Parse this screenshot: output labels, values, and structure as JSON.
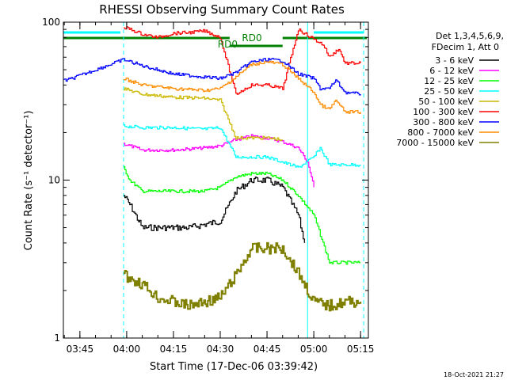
{
  "chart_data": {
    "type": "line",
    "title": "RHESSI Observing Summary Count Rates",
    "xlabel": "Start Time (17-Dec-06 03:39:42)",
    "ylabel": "Count Rate (s⁻¹ detector⁻¹)",
    "y_scale": "log",
    "ylim": [
      1,
      100
    ],
    "xlim": [
      "03:39:42",
      "05:17:30"
    ],
    "x_ticks": [
      "03:45",
      "04:00",
      "04:15",
      "04:30",
      "04:45",
      "05:00",
      "05:15"
    ],
    "y_ticks": [
      "1",
      "10",
      "100"
    ],
    "legend_header": [
      "Det 1,3,4,5,6,9,",
      "FDecim 1, Att 0"
    ],
    "legend_position": "right",
    "annotations": [
      "RD0",
      "RD0"
    ],
    "timestamp": "18-Oct-2021 21:27",
    "series": [
      {
        "name": "3 - 6 keV",
        "color": "#000000",
        "x": [
          "03:59",
          "04:01",
          "04:05",
          "04:10",
          "04:20",
          "04:30",
          "04:35",
          "04:40",
          "04:45",
          "04:50",
          "04:55",
          "04:57"
        ],
        "values": [
          8,
          7,
          5,
          5,
          5,
          5.5,
          8.5,
          10,
          10,
          9,
          6,
          4
        ]
      },
      {
        "name": "6 - 12 keV",
        "color": "#ff00ff",
        "x": [
          "03:59",
          "04:05",
          "04:15",
          "04:25",
          "04:30",
          "04:35",
          "04:40",
          "04:45",
          "04:50",
          "04:55",
          "04:58",
          "05:00"
        ],
        "values": [
          17,
          15.5,
          15.5,
          16,
          16.5,
          18,
          19,
          18.5,
          17.5,
          16,
          13,
          9
        ]
      },
      {
        "name": "12 - 25 keV",
        "color": "#00ff00",
        "x": [
          "03:59",
          "04:01",
          "04:05",
          "04:15",
          "04:25",
          "04:30",
          "04:35",
          "04:40",
          "04:45",
          "04:50",
          "04:55",
          "05:00",
          "05:05",
          "05:10",
          "05:15"
        ],
        "values": [
          12,
          10,
          8.5,
          8.5,
          8.5,
          9,
          10.5,
          11,
          11,
          10,
          8,
          6,
          3,
          3,
          3
        ]
      },
      {
        "name": "25 - 50 keV",
        "color": "#00ffff",
        "x": [
          "03:59",
          "04:05",
          "04:15",
          "04:25",
          "04:30",
          "04:35",
          "04:40",
          "04:45",
          "04:50",
          "04:55",
          "05:00",
          "05:02",
          "05:05",
          "05:10",
          "05:15"
        ],
        "values": [
          22,
          21.5,
          21.5,
          21,
          21.5,
          14,
          14,
          14,
          13,
          12,
          14,
          16,
          12.5,
          12.5,
          12.5
        ]
      },
      {
        "name": "50 - 100 keV",
        "color": "#ccb800",
        "x": [
          "03:59",
          "04:05",
          "04:15",
          "04:25",
          "04:30",
          "04:35",
          "04:40",
          "04:45",
          "04:50"
        ],
        "values": [
          38,
          35,
          33.5,
          33,
          32,
          18.5,
          18.5,
          18.5,
          18
        ]
      },
      {
        "name": "100 - 300 keV",
        "color": "#ff0000",
        "x": [
          "03:59",
          "04:00",
          "04:05",
          "04:10",
          "04:15",
          "04:20",
          "04:25",
          "04:30",
          "04:35",
          "04:40",
          "04:45",
          "04:50",
          "04:55",
          "05:00",
          "05:03",
          "05:05",
          "05:08",
          "05:10",
          "05:15"
        ],
        "values": [
          90,
          92,
          84,
          80,
          85,
          86,
          88,
          80,
          35,
          40,
          40,
          38,
          90,
          78,
          72,
          60,
          68,
          55,
          55
        ]
      },
      {
        "name": "300 - 800 keV",
        "color": "#0000ff",
        "x": [
          "03:39:42",
          "03:41",
          "03:59",
          "04:05",
          "04:15",
          "04:25",
          "04:30",
          "04:35",
          "04:40",
          "04:45",
          "04:50",
          "04:55",
          "05:00",
          "05:02",
          "05:05",
          "05:07",
          "05:10",
          "05:15"
        ],
        "values": [
          43,
          43,
          58,
          53,
          47,
          45,
          44,
          48,
          56,
          58,
          57,
          47,
          44,
          38,
          38,
          43,
          36,
          35
        ]
      },
      {
        "name": "800 - 7000 keV",
        "color": "#ff8c00",
        "x": [
          "03:59",
          "04:05",
          "04:15",
          "04:25",
          "04:30",
          "04:35",
          "04:40",
          "04:45",
          "04:50",
          "04:55",
          "05:00",
          "05:02",
          "05:05",
          "05:07",
          "05:10",
          "05:15"
        ],
        "values": [
          44,
          40,
          38,
          37,
          38,
          45,
          54,
          56,
          54,
          44,
          36,
          30,
          28,
          32,
          27,
          27
        ]
      },
      {
        "name": "7000 - 15000 keV",
        "color": "#808000",
        "x": [
          "03:59",
          "04:05",
          "04:10",
          "04:20",
          "04:30",
          "04:35",
          "04:40",
          "04:45",
          "04:50",
          "04:55",
          "05:00",
          "05:05",
          "05:10",
          "05:15"
        ],
        "values": [
          2.5,
          2.2,
          1.8,
          1.6,
          1.8,
          2.5,
          3.7,
          3.7,
          3.7,
          2.6,
          1.7,
          1.6,
          1.7,
          1.7
        ]
      }
    ],
    "markers": {
      "cyan_dashed_at": [
        "03:59",
        "05:16"
      ],
      "cyan_solid_at": [
        "04:58"
      ],
      "cyan_top_bars": [
        [
          "03:39:42",
          "03:58"
        ],
        [
          "05:00",
          "05:16"
        ]
      ],
      "green_top_bars": [
        [
          "03:39:42",
          "04:33"
        ],
        [
          "04:33",
          "04:50"
        ],
        [
          "04:50",
          "05:17"
        ]
      ]
    }
  }
}
